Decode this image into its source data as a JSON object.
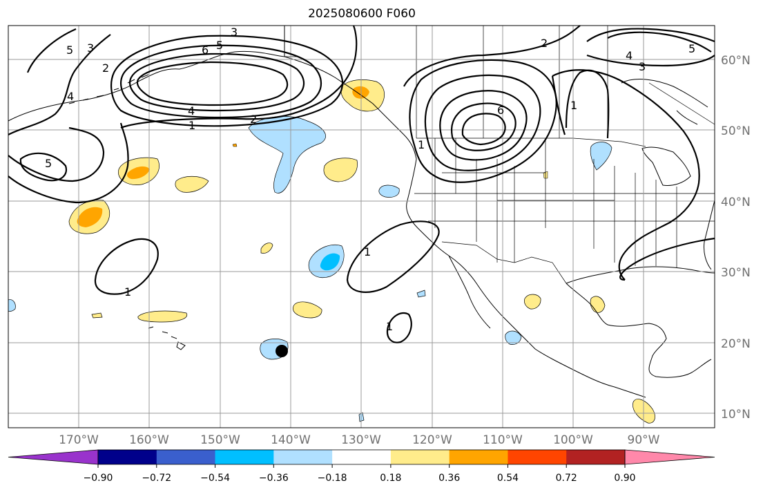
{
  "title": "2025080600 F060",
  "map": {
    "lat_labels": [
      "60°N",
      "50°N",
      "40°N",
      "30°N",
      "20°N",
      "10°N"
    ],
    "lon_labels": [
      "170°W",
      "160°W",
      "150°W",
      "140°W",
      "130°W",
      "120°W",
      "110°W",
      "100°W",
      "90°W"
    ]
  },
  "colorbar": {
    "ticks": [
      "−0.90",
      "−0.72",
      "−0.54",
      "−0.36",
      "−0.18",
      "0.18",
      "0.36",
      "0.54",
      "0.72",
      "0.90"
    ],
    "colors": [
      "#9933cc",
      "#00008b",
      "#3a5fcd",
      "#00bfff",
      "#b0e0ff",
      "#ffffff",
      "#ffec8b",
      "#ffa500",
      "#ff4500",
      "#b22222",
      "#ff88aa"
    ]
  },
  "contour_labels": [
    "3",
    "5",
    "6",
    "5",
    "3",
    "2",
    "4",
    "1",
    "2",
    "4",
    "5",
    "1",
    "1",
    "1",
    "1",
    "2",
    "4",
    "3",
    "5",
    "6",
    "1"
  ],
  "colors": {
    "pale_blue": "#b0e0ff",
    "blue": "#00bfff",
    "pale_yellow": "#ffec8b",
    "orange": "#ffa500"
  },
  "marker": "storm-center-dot"
}
